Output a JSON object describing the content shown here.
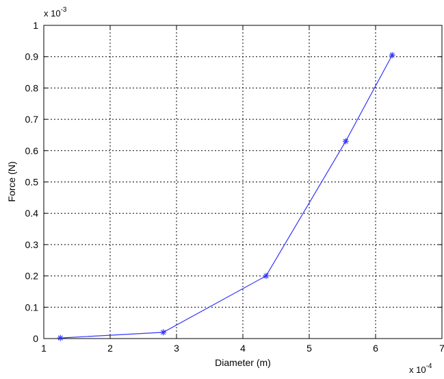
{
  "chart_data": {
    "type": "line",
    "title": "",
    "xlabel": "Diameter (m)",
    "ylabel": "Force (N)",
    "x_multiplier": {
      "base": "x 10",
      "exponent": "-4"
    },
    "y_multiplier": {
      "base": "x 10",
      "exponent": "-3"
    },
    "xlim": [
      1,
      7
    ],
    "ylim": [
      0,
      1
    ],
    "x_ticks": [
      1,
      2,
      3,
      4,
      5,
      6,
      7
    ],
    "x_tick_labels": [
      "1",
      "2",
      "3",
      "4",
      "5",
      "6",
      "7"
    ],
    "y_ticks": [
      0,
      0.1,
      0.2,
      0.3,
      0.4,
      0.5,
      0.6,
      0.7,
      0.8,
      0.9,
      1
    ],
    "y_tick_labels": [
      "0",
      "0.1",
      "0.2",
      "0.3",
      "0.4",
      "0.5",
      "0.6",
      "0.7",
      "0.8",
      "0.9",
      "1"
    ],
    "grid": true,
    "line_color": "#3333ff",
    "series": [
      {
        "marker": "asterisk",
        "x": [
          1.25,
          2.8,
          4.35,
          5.55,
          6.25
        ],
        "y": [
          0.002,
          0.02,
          0.2,
          0.63,
          0.905
        ]
      }
    ]
  }
}
